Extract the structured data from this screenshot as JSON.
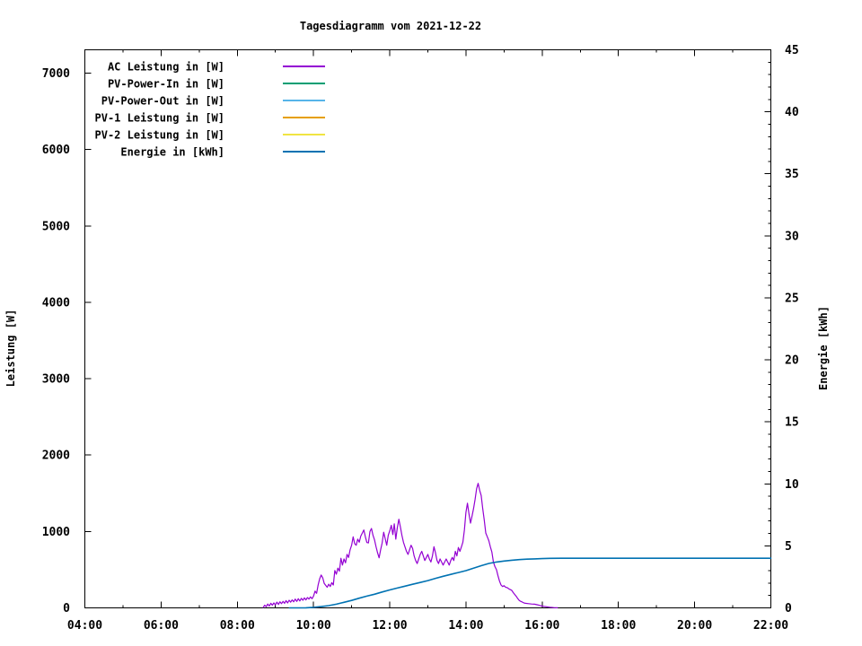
{
  "title": "Tagesdiagramm vom 2021-12-22",
  "colors": {
    "ac_power": "#9400d3",
    "pv_power_in": "#009e73",
    "pv_power_out": "#56b4e9",
    "pv1_power": "#e69f00",
    "pv2_power": "#f0e442",
    "energy": "#0072b2",
    "axis": "#000000",
    "background": "#ffffff"
  },
  "chart_data": {
    "type": "line",
    "title": "Tagesdiagramm vom 2021-12-22",
    "grid": "off",
    "legend_position": "top-left-inside",
    "x_axis": {
      "label": "",
      "range_hours": [
        4,
        22
      ],
      "major_step_hours": 2,
      "minor_step_hours": 1,
      "ticks": [
        "04:00",
        "06:00",
        "08:00",
        "10:00",
        "12:00",
        "14:00",
        "16:00",
        "18:00",
        "20:00",
        "22:00"
      ]
    },
    "y_left": {
      "label": "Leistung [W]",
      "range": [
        0,
        7320
      ],
      "tick_step": 1000,
      "ticks": [
        "0",
        "1000",
        "2000",
        "3000",
        "4000",
        "5000",
        "6000",
        "7000"
      ]
    },
    "y_right": {
      "label": "Energie [kWh]",
      "range": [
        0,
        45
      ],
      "tick_step": 5,
      "minor_step": 1,
      "ticks": [
        "0",
        "5",
        "10",
        "15",
        "20",
        "25",
        "30",
        "35",
        "40",
        "45"
      ]
    },
    "series": [
      {
        "name": "AC Leistung in [W]",
        "color": "#9400d3",
        "axis": "left",
        "peak_value_w": 1630,
        "points": [
          [
            8.68,
            5
          ],
          [
            8.72,
            35
          ],
          [
            8.76,
            15
          ],
          [
            8.8,
            50
          ],
          [
            8.84,
            25
          ],
          [
            8.88,
            60
          ],
          [
            8.92,
            35
          ],
          [
            8.96,
            65
          ],
          [
            9,
            40
          ],
          [
            9.04,
            75
          ],
          [
            9.08,
            45
          ],
          [
            9.12,
            80
          ],
          [
            9.16,
            55
          ],
          [
            9.2,
            85
          ],
          [
            9.24,
            60
          ],
          [
            9.28,
            95
          ],
          [
            9.32,
            65
          ],
          [
            9.36,
            100
          ],
          [
            9.4,
            75
          ],
          [
            9.44,
            105
          ],
          [
            9.48,
            80
          ],
          [
            9.52,
            115
          ],
          [
            9.56,
            85
          ],
          [
            9.6,
            120
          ],
          [
            9.64,
            90
          ],
          [
            9.68,
            125
          ],
          [
            9.72,
            100
          ],
          [
            9.76,
            130
          ],
          [
            9.8,
            105
          ],
          [
            9.84,
            135
          ],
          [
            9.88,
            115
          ],
          [
            9.92,
            145
          ],
          [
            9.96,
            120
          ],
          [
            10,
            155
          ],
          [
            10.04,
            220
          ],
          [
            10.08,
            190
          ],
          [
            10.12,
            300
          ],
          [
            10.16,
            380
          ],
          [
            10.2,
            430
          ],
          [
            10.24,
            395
          ],
          [
            10.28,
            320
          ],
          [
            10.32,
            295
          ],
          [
            10.36,
            270
          ],
          [
            10.4,
            310
          ],
          [
            10.44,
            280
          ],
          [
            10.48,
            330
          ],
          [
            10.52,
            300
          ],
          [
            10.56,
            490
          ],
          [
            10.6,
            440
          ],
          [
            10.64,
            520
          ],
          [
            10.68,
            480
          ],
          [
            10.72,
            650
          ],
          [
            10.76,
            560
          ],
          [
            10.8,
            640
          ],
          [
            10.84,
            590
          ],
          [
            10.88,
            700
          ],
          [
            10.92,
            660
          ],
          [
            10.96,
            760
          ],
          [
            11,
            820
          ],
          [
            11.04,
            930
          ],
          [
            11.08,
            840
          ],
          [
            11.12,
            820
          ],
          [
            11.16,
            900
          ],
          [
            11.2,
            860
          ],
          [
            11.24,
            940
          ],
          [
            11.28,
            980
          ],
          [
            11.32,
            1020
          ],
          [
            11.36,
            930
          ],
          [
            11.4,
            855
          ],
          [
            11.44,
            850
          ],
          [
            11.48,
            1000
          ],
          [
            11.52,
            1040
          ],
          [
            11.56,
            950
          ],
          [
            11.6,
            890
          ],
          [
            11.64,
            800
          ],
          [
            11.68,
            720
          ],
          [
            11.72,
            655
          ],
          [
            11.76,
            760
          ],
          [
            11.8,
            850
          ],
          [
            11.84,
            990
          ],
          [
            11.88,
            905
          ],
          [
            11.92,
            820
          ],
          [
            11.96,
            950
          ],
          [
            12,
            1010
          ],
          [
            12.04,
            1080
          ],
          [
            12.08,
            960
          ],
          [
            12.12,
            1100
          ],
          [
            12.16,
            900
          ],
          [
            12.2,
            1050
          ],
          [
            12.24,
            1160
          ],
          [
            12.28,
            1060
          ],
          [
            12.32,
            950
          ],
          [
            12.36,
            860
          ],
          [
            12.4,
            800
          ],
          [
            12.44,
            740
          ],
          [
            12.48,
            700
          ],
          [
            12.52,
            760
          ],
          [
            12.56,
            820
          ],
          [
            12.6,
            780
          ],
          [
            12.64,
            680
          ],
          [
            12.68,
            620
          ],
          [
            12.72,
            580
          ],
          [
            12.76,
            640
          ],
          [
            12.8,
            700
          ],
          [
            12.84,
            740
          ],
          [
            12.88,
            680
          ],
          [
            12.92,
            620
          ],
          [
            12.96,
            660
          ],
          [
            13,
            700
          ],
          [
            13.04,
            640
          ],
          [
            13.08,
            600
          ],
          [
            13.12,
            680
          ],
          [
            13.16,
            800
          ],
          [
            13.2,
            720
          ],
          [
            13.24,
            620
          ],
          [
            13.28,
            580
          ],
          [
            13.32,
            640
          ],
          [
            13.36,
            600
          ],
          [
            13.4,
            560
          ],
          [
            13.44,
            600
          ],
          [
            13.48,
            640
          ],
          [
            13.52,
            600
          ],
          [
            13.56,
            560
          ],
          [
            13.6,
            620
          ],
          [
            13.64,
            660
          ],
          [
            13.68,
            620
          ],
          [
            13.72,
            740
          ],
          [
            13.76,
            680
          ],
          [
            13.8,
            790
          ],
          [
            13.84,
            740
          ],
          [
            13.88,
            800
          ],
          [
            13.92,
            860
          ],
          [
            13.96,
            1020
          ],
          [
            14,
            1250
          ],
          [
            14.04,
            1370
          ],
          [
            14.08,
            1230
          ],
          [
            14.12,
            1110
          ],
          [
            14.16,
            1200
          ],
          [
            14.2,
            1300
          ],
          [
            14.24,
            1420
          ],
          [
            14.28,
            1560
          ],
          [
            14.32,
            1630
          ],
          [
            14.36,
            1540
          ],
          [
            14.4,
            1470
          ],
          [
            14.44,
            1300
          ],
          [
            14.48,
            1150
          ],
          [
            14.52,
            980
          ],
          [
            14.56,
            930
          ],
          [
            14.6,
            880
          ],
          [
            14.64,
            800
          ],
          [
            14.68,
            730
          ],
          [
            14.72,
            600
          ],
          [
            14.76,
            540
          ],
          [
            14.8,
            500
          ],
          [
            14.84,
            420
          ],
          [
            14.88,
            350
          ],
          [
            14.92,
            300
          ],
          [
            14.96,
            280
          ],
          [
            15,
            290
          ],
          [
            15.04,
            270
          ],
          [
            15.08,
            265
          ],
          [
            15.12,
            250
          ],
          [
            15.16,
            240
          ],
          [
            15.2,
            230
          ],
          [
            15.24,
            200
          ],
          [
            15.28,
            175
          ],
          [
            15.32,
            150
          ],
          [
            15.36,
            120
          ],
          [
            15.4,
            95
          ],
          [
            15.44,
            85
          ],
          [
            15.48,
            75
          ],
          [
            15.52,
            65
          ],
          [
            15.56,
            60
          ],
          [
            15.64,
            55
          ],
          [
            15.72,
            50
          ],
          [
            15.8,
            48
          ],
          [
            15.88,
            40
          ],
          [
            15.96,
            28
          ],
          [
            16.04,
            20
          ],
          [
            16.12,
            14
          ],
          [
            16.2,
            8
          ],
          [
            16.3,
            4
          ],
          [
            16.4,
            1
          ]
        ]
      },
      {
        "name": "PV-Power-In in [W]",
        "color": "#009e73",
        "axis": "left",
        "points": []
      },
      {
        "name": "PV-Power-Out in [W]",
        "color": "#56b4e9",
        "axis": "left",
        "points": []
      },
      {
        "name": "PV-1 Leistung in [W]",
        "color": "#e69f00",
        "axis": "left",
        "points": []
      },
      {
        "name": "PV-2 Leistung in [W]",
        "color": "#f0e442",
        "axis": "left",
        "points": []
      },
      {
        "name": "Energie in [kWh]",
        "color": "#0072b2",
        "axis": "right",
        "final_value_kwh": 4.0,
        "points": [
          [
            9.37,
            0
          ],
          [
            9.8,
            0.01
          ],
          [
            10,
            0.04
          ],
          [
            10.2,
            0.1
          ],
          [
            10.4,
            0.18
          ],
          [
            10.6,
            0.3
          ],
          [
            10.8,
            0.45
          ],
          [
            11,
            0.6
          ],
          [
            11.2,
            0.78
          ],
          [
            11.4,
            0.95
          ],
          [
            11.6,
            1.1
          ],
          [
            11.8,
            1.28
          ],
          [
            12,
            1.45
          ],
          [
            12.2,
            1.6
          ],
          [
            12.4,
            1.75
          ],
          [
            12.6,
            1.9
          ],
          [
            12.8,
            2.05
          ],
          [
            13,
            2.2
          ],
          [
            13.2,
            2.38
          ],
          [
            13.4,
            2.55
          ],
          [
            13.6,
            2.7
          ],
          [
            13.8,
            2.85
          ],
          [
            14,
            3.0
          ],
          [
            14.2,
            3.2
          ],
          [
            14.4,
            3.4
          ],
          [
            14.6,
            3.58
          ],
          [
            14.8,
            3.7
          ],
          [
            15,
            3.78
          ],
          [
            15.2,
            3.84
          ],
          [
            15.4,
            3.89
          ],
          [
            15.6,
            3.93
          ],
          [
            15.8,
            3.95
          ],
          [
            16,
            3.97
          ],
          [
            16.2,
            3.99
          ],
          [
            16.5,
            4.0
          ],
          [
            22,
            4.0
          ]
        ]
      }
    ]
  }
}
